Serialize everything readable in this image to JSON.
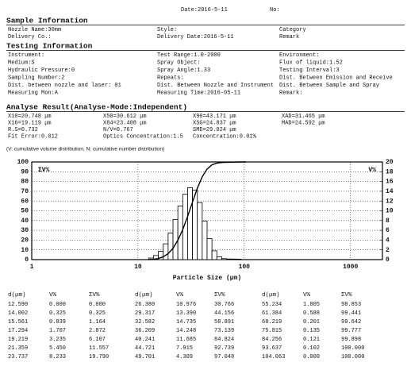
{
  "header": {
    "date": "Date:2016-5-11",
    "no": "No:"
  },
  "sample_info": {
    "title": "Sample Information",
    "rows": [
      [
        "Nozzle Name:30mm",
        "Style:",
        "Category"
      ],
      [
        "Delivery Co.:",
        "Delivery Date:2016-5-11",
        "Remark"
      ]
    ]
  },
  "testing_info": {
    "title": "Testing Information",
    "rows": [
      [
        "Instrument:",
        "Test Range:1.0-2000",
        "Environment:"
      ],
      [
        "Medium:S",
        "Spray Object:",
        "Flux of liquid:1.52"
      ],
      [
        "Hydraulic Pressure:0",
        "Spray Angle:1.33",
        "Testing Interval:3"
      ],
      [
        "Sampling Number:2",
        "Repeats:",
        "Dist. Between Emission and Receive"
      ],
      [
        "Dist. between nozzle and laser: 01",
        "Dist. Between Nozzle and Instrument",
        "Dist. Between Sample and Spray"
      ],
      [
        "Measuring Mon:A",
        "Measuring Time:2016-05-11",
        "Remark:"
      ]
    ]
  },
  "analyse_result": {
    "title": "Analyse Result(Analyse-Mode:Independent)",
    "rows": [
      [
        "X10=20.748 μm",
        "X50=30.612 μm",
        "X90=43.171 μm",
        "XAD=31.465 μm"
      ],
      [
        "X16=19.119 μm",
        "X84=23.408 μm",
        "XSG=24.837 μm",
        "MAD=24.592 μm"
      ],
      [
        "R.S=0.732",
        "N/V=0.767",
        "SMD=29.024 μm"
      ],
      [
        "Fit Error:0.012",
        "Optics Concentration:1.5",
        "Concentration:0.01%"
      ]
    ],
    "note": "(V: cumulative volume distribution, N: cumulative number distribution)"
  },
  "chart_data": {
    "type": "histogram",
    "x_label": "Particle Size (μm)",
    "log_x": true,
    "grid": true,
    "x": [
      12.59,
      14.002,
      15.561,
      17.294,
      19.219,
      21.359,
      23.737,
      26.38,
      29.317,
      32.582,
      36.209,
      40.241,
      44.721,
      49.701,
      55.234,
      61.384,
      68.219,
      75.815,
      84.256,
      93.637,
      104.063
    ],
    "series": [
      {
        "name": "ΣV%",
        "type": "line",
        "color": "#000000",
        "values": [
          0,
          0.325,
          1.164,
          2.872,
          6.107,
          11.557,
          19.79,
          30.766,
          44.156,
          58.891,
          73.139,
          84.824,
          92.739,
          97.048,
          98.853,
          99.441,
          99.642,
          99.777,
          99.898,
          100,
          100
        ]
      },
      {
        "name": "V%",
        "type": "bar",
        "axis": "y2",
        "color": "#ffffff",
        "values": [
          0,
          0.325,
          0.839,
          1.707,
          3.235,
          5.45,
          8.233,
          10.976,
          13.39,
          14.735,
          14.248,
          11.685,
          7.915,
          4.309,
          1.805,
          0.588,
          0.201,
          0.135,
          0.121,
          0.102,
          0
        ]
      }
    ],
    "xlim": [
      1,
      2000
    ],
    "xticks": [
      1,
      10,
      100,
      1000
    ],
    "ylim": [
      0,
      100
    ],
    "yticks": [
      0,
      10,
      20,
      30,
      40,
      50,
      60,
      70,
      80,
      90,
      100
    ],
    "y2lim": [
      0,
      20
    ],
    "y2ticks": [
      0,
      2,
      4,
      6,
      8,
      10,
      12,
      14,
      16,
      18,
      20
    ]
  },
  "table": {
    "header": [
      "d(μm)",
      "V%",
      "ΣV%",
      "d(μm)",
      "V%",
      "ΣV%",
      "d(μm)",
      "V%",
      "ΣV%"
    ],
    "rows": [
      [
        "12.590",
        "0.000",
        "0.000",
        "26.380",
        "10.976",
        "30.766",
        "55.234",
        "1.805",
        "98.853"
      ],
      [
        "14.002",
        "0.325",
        "0.325",
        "29.317",
        "13.390",
        "44.156",
        "61.384",
        "0.588",
        "99.441"
      ],
      [
        "15.561",
        "0.839",
        "1.164",
        "32.582",
        "14.735",
        "58.891",
        "68.219",
        "0.201",
        "99.642"
      ],
      [
        "17.294",
        "1.707",
        "2.872",
        "36.209",
        "14.248",
        "73.139",
        "75.815",
        "0.135",
        "99.777"
      ],
      [
        "19.219",
        "3.235",
        "6.107",
        "40.241",
        "11.685",
        "84.824",
        "84.256",
        "0.121",
        "99.898"
      ],
      [
        "21.359",
        "5.450",
        "11.557",
        "44.721",
        "7.915",
        "92.739",
        "93.637",
        "0.102",
        "100.000"
      ],
      [
        "23.737",
        "8.233",
        "19.790",
        "49.701",
        "4.309",
        "97.048",
        "104.063",
        "0.000",
        "100.000"
      ]
    ]
  }
}
